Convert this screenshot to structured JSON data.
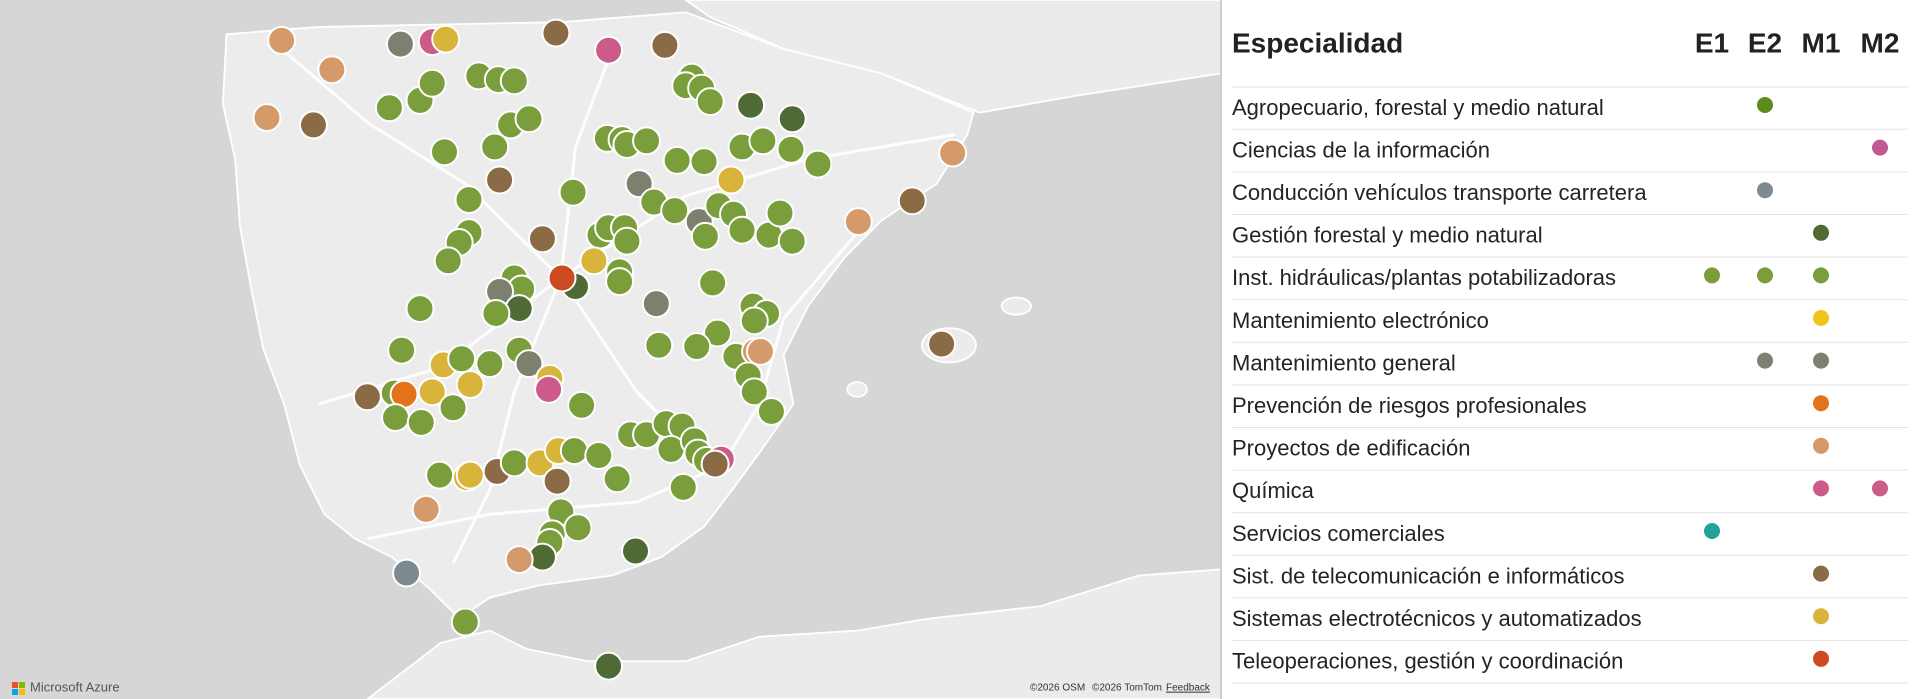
{
  "table": {
    "title": "Especialidad",
    "columns": [
      "E1",
      "E2",
      "M1",
      "M2"
    ],
    "rows": [
      {
        "label": "Agropecuario, forestal y medio natural",
        "color": "#5e8a1a",
        "marks": [
          false,
          true,
          false,
          false
        ]
      },
      {
        "label": "Ciencias de la información",
        "color": "#c05a90",
        "marks": [
          false,
          false,
          false,
          true
        ]
      },
      {
        "label": "Conducción vehículos transporte carretera",
        "color": "#7d8a8f",
        "marks": [
          false,
          true,
          false,
          false
        ]
      },
      {
        "label": "Gestión forestal y medio natural",
        "color": "#4f6a35",
        "marks": [
          false,
          false,
          true,
          false
        ]
      },
      {
        "label": "Inst. hidráulicas/plantas potabilizadoras",
        "color": "#7a9e3b",
        "marks": [
          true,
          true,
          true,
          false
        ]
      },
      {
        "label": "Mantenimiento electrónico",
        "color": "#f0c419",
        "marks": [
          false,
          false,
          true,
          false
        ]
      },
      {
        "label": "Mantenimiento general",
        "color": "#7d806f",
        "marks": [
          false,
          true,
          true,
          false
        ]
      },
      {
        "label": "Prevención de riesgos profesionales",
        "color": "#e2731a",
        "marks": [
          false,
          false,
          true,
          false
        ]
      },
      {
        "label": "Proyectos de edificación",
        "color": "#d49a6a",
        "marks": [
          false,
          false,
          true,
          false
        ]
      },
      {
        "label": "Química",
        "color": "#cc5b8a",
        "marks": [
          false,
          false,
          true,
          true
        ]
      },
      {
        "label": "Servicios comerciales",
        "color": "#20a39a",
        "marks": [
          true,
          false,
          false,
          false
        ]
      },
      {
        "label": "Sist. de telecomunicación e informáticos",
        "color": "#8b6a46",
        "marks": [
          false,
          false,
          true,
          false
        ]
      },
      {
        "label": "Sistemas electrotécnicos y automatizados",
        "color": "#d9b43a",
        "marks": [
          false,
          false,
          true,
          false
        ]
      },
      {
        "label": "Teleoperaciones, gestión y coordinación",
        "color": "#cc4a1f",
        "marks": [
          false,
          false,
          true,
          false
        ]
      }
    ]
  },
  "credits": {
    "brand": "Microsoft Azure",
    "osm": "©2026 OSM",
    "tomtom": "©2026 TomTom",
    "feedback": "Feedback"
  }
}
